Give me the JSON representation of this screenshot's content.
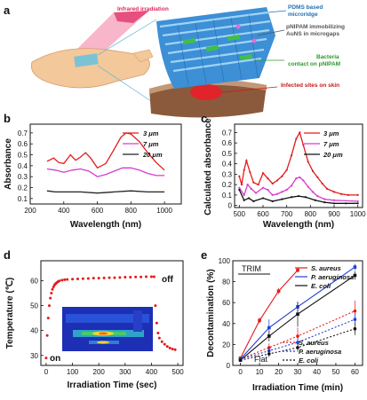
{
  "panel_a": {
    "label": "a",
    "callouts": {
      "infrared": "Infrared irradiation",
      "pdms": [
        "PDMS based",
        "microridge"
      ],
      "pnipam": [
        "pNIPAM immobilizing",
        "AuNS in microgaps"
      ],
      "bacteria": [
        "Bacteria",
        "contact on pNIPAM"
      ],
      "infected": "Infected sites on skin"
    },
    "colors": {
      "infrared": "#e0245e",
      "pdms": "#1f6fb3",
      "pnipam": "#555555",
      "bacteria": "#2a9a2a",
      "infected": "#c81818"
    }
  },
  "chart_data": [
    {
      "panel": "b",
      "type": "line",
      "xlabel": "Wavelength (nm)",
      "ylabel": "Absorbance",
      "xlim": [
        200,
        1100
      ],
      "ylim": [
        0.05,
        0.78
      ],
      "xticks": [
        200,
        400,
        600,
        800,
        1000
      ],
      "yticks": [
        0.1,
        0.2,
        0.3,
        0.4,
        0.5,
        0.6,
        0.7
      ],
      "series": [
        {
          "name": "3 μm",
          "color": "#e31a1c",
          "x": [
            300,
            340,
            370,
            400,
            440,
            470,
            500,
            530,
            560,
            600,
            650,
            700,
            740,
            770,
            800,
            850,
            900,
            950,
            1000
          ],
          "y": [
            0.44,
            0.47,
            0.43,
            0.42,
            0.5,
            0.45,
            0.48,
            0.52,
            0.47,
            0.38,
            0.42,
            0.55,
            0.66,
            0.7,
            0.69,
            0.62,
            0.52,
            0.43,
            0.36
          ]
        },
        {
          "name": "7 μm",
          "color": "#d63acd",
          "x": [
            300,
            350,
            400,
            450,
            500,
            550,
            600,
            650,
            700,
            750,
            800,
            850,
            900,
            950,
            1000
          ],
          "y": [
            0.37,
            0.36,
            0.34,
            0.36,
            0.37,
            0.35,
            0.3,
            0.32,
            0.35,
            0.38,
            0.38,
            0.36,
            0.33,
            0.31,
            0.31
          ]
        },
        {
          "name": "20 μm",
          "color": "#222222",
          "x": [
            300,
            350,
            400,
            500,
            600,
            700,
            800,
            900,
            1000
          ],
          "y": [
            0.17,
            0.16,
            0.16,
            0.16,
            0.15,
            0.16,
            0.17,
            0.16,
            0.16
          ]
        }
      ]
    },
    {
      "panel": "c",
      "type": "line",
      "xlabel": "Wavelength (nm)",
      "ylabel": "Calculated absorbance",
      "xlim": [
        480,
        1020
      ],
      "ylim": [
        -0.02,
        0.78
      ],
      "xticks": [
        500,
        600,
        700,
        800,
        900,
        1000
      ],
      "yticks": [
        0.0,
        0.1,
        0.2,
        0.3,
        0.4,
        0.5,
        0.6,
        0.7
      ],
      "series": [
        {
          "name": "3 μm",
          "color": "#e31a1c",
          "x": [
            500,
            510,
            520,
            530,
            545,
            560,
            580,
            600,
            620,
            640,
            660,
            680,
            700,
            720,
            740,
            755,
            770,
            790,
            810,
            830,
            850,
            870,
            900,
            930,
            960,
            1000
          ],
          "y": [
            0.28,
            0.2,
            0.34,
            0.43,
            0.32,
            0.22,
            0.2,
            0.31,
            0.26,
            0.21,
            0.24,
            0.28,
            0.34,
            0.48,
            0.64,
            0.7,
            0.58,
            0.42,
            0.33,
            0.27,
            0.21,
            0.16,
            0.13,
            0.11,
            0.1,
            0.1
          ]
        },
        {
          "name": "7 μm",
          "color": "#d63acd",
          "x": [
            500,
            520,
            535,
            550,
            570,
            600,
            620,
            640,
            660,
            680,
            700,
            720,
            740,
            755,
            770,
            790,
            810,
            830,
            860,
            900,
            1000
          ],
          "y": [
            0.17,
            0.1,
            0.2,
            0.16,
            0.12,
            0.17,
            0.15,
            0.1,
            0.11,
            0.13,
            0.15,
            0.19,
            0.26,
            0.27,
            0.24,
            0.18,
            0.13,
            0.09,
            0.06,
            0.05,
            0.04
          ]
        },
        {
          "name": "20 μm",
          "color": "#111111",
          "x": [
            500,
            520,
            540,
            560,
            600,
            640,
            680,
            720,
            750,
            780,
            820,
            860,
            900,
            950,
            1000
          ],
          "y": [
            0.15,
            0.05,
            0.07,
            0.04,
            0.07,
            0.04,
            0.06,
            0.08,
            0.09,
            0.08,
            0.05,
            0.03,
            0.02,
            0.02,
            0.02
          ]
        }
      ]
    },
    {
      "panel": "d",
      "type": "scatter",
      "xlabel": "Irradiation Time (sec)",
      "ylabel": "Temperature (℃)",
      "xlim": [
        -20,
        520
      ],
      "ylim": [
        26,
        68
      ],
      "xticks": [
        0,
        100,
        200,
        300,
        400,
        500
      ],
      "yticks": [
        30,
        40,
        50,
        60
      ],
      "series": [
        {
          "name": "",
          "color": "#e31a1c",
          "x": [
            0,
            4,
            8,
            12,
            16,
            20,
            24,
            28,
            32,
            36,
            40,
            45,
            50,
            60,
            70,
            80,
            100,
            120,
            140,
            160,
            180,
            200,
            220,
            240,
            260,
            280,
            300,
            320,
            340,
            360,
            380,
            400,
            410,
            415,
            420,
            425,
            430,
            440,
            450,
            460,
            470,
            480,
            490
          ],
          "y": [
            29,
            38,
            45,
            50,
            53,
            55,
            56.5,
            57.5,
            58.3,
            58.8,
            59.2,
            59.6,
            59.9,
            60.2,
            60.4,
            60.5,
            60.6,
            60.7,
            60.8,
            60.9,
            61,
            61,
            61.1,
            61.2,
            61.2,
            61.3,
            61.4,
            61.4,
            61.5,
            61.5,
            61.6,
            61.6,
            61.6,
            50,
            43,
            39,
            37,
            35.5,
            34.5,
            33.6,
            33,
            32.6,
            32.3
          ]
        }
      ],
      "annotations": [
        "on",
        "off"
      ]
    },
    {
      "panel": "e",
      "type": "line",
      "xlabel": "Irradiation Time (min)",
      "ylabel": "Decontamination (%)",
      "xlim": [
        -4,
        64
      ],
      "ylim": [
        0,
        100
      ],
      "xticks": [
        0,
        10,
        20,
        30,
        40,
        50,
        60
      ],
      "yticks": [
        0,
        20,
        40,
        60,
        80,
        100
      ],
      "legend_solid": [
        "S. aureus",
        "P. aeruginosa",
        "E. coli"
      ],
      "legend_dashed": [
        "S. aureus",
        "P. aeruginosa",
        "E. coli"
      ],
      "group_labels": [
        "TRIM",
        "Flat"
      ],
      "series": [
        {
          "name": "S. aureus (TRIM)",
          "color": "#e31a1c",
          "dash": false,
          "x": [
            0,
            10,
            20,
            30
          ],
          "y": [
            7,
            43,
            71,
            91
          ],
          "err": [
            1,
            3,
            3,
            2
          ]
        },
        {
          "name": "P. aeruginosa (TRIM)",
          "color": "#1f3fd6",
          "dash": false,
          "x": [
            0,
            15,
            30,
            60
          ],
          "y": [
            6,
            36,
            56,
            94
          ],
          "err": [
            1,
            8,
            4,
            3
          ]
        },
        {
          "name": "E. coli (TRIM)",
          "color": "#111111",
          "dash": false,
          "x": [
            0,
            15,
            30,
            60
          ],
          "y": [
            5,
            28,
            49,
            86
          ],
          "err": [
            1,
            5,
            12,
            4
          ]
        },
        {
          "name": "S. aureus (Flat)",
          "color": "#e31a1c",
          "dash": true,
          "x": [
            0,
            15,
            30,
            60
          ],
          "y": [
            6,
            17,
            28,
            52
          ],
          "err": [
            1,
            4,
            8,
            10
          ]
        },
        {
          "name": "P. aeruginosa (Flat)",
          "color": "#1f3fd6",
          "dash": true,
          "x": [
            0,
            15,
            30,
            60
          ],
          "y": [
            6,
            14,
            22,
            44
          ],
          "err": [
            1,
            3,
            5,
            6
          ]
        },
        {
          "name": "E. coli (Flat)",
          "color": "#111111",
          "dash": true,
          "x": [
            0,
            15,
            30,
            60
          ],
          "y": [
            5,
            11,
            17,
            35
          ],
          "err": [
            1,
            3,
            4,
            6
          ]
        }
      ]
    }
  ]
}
